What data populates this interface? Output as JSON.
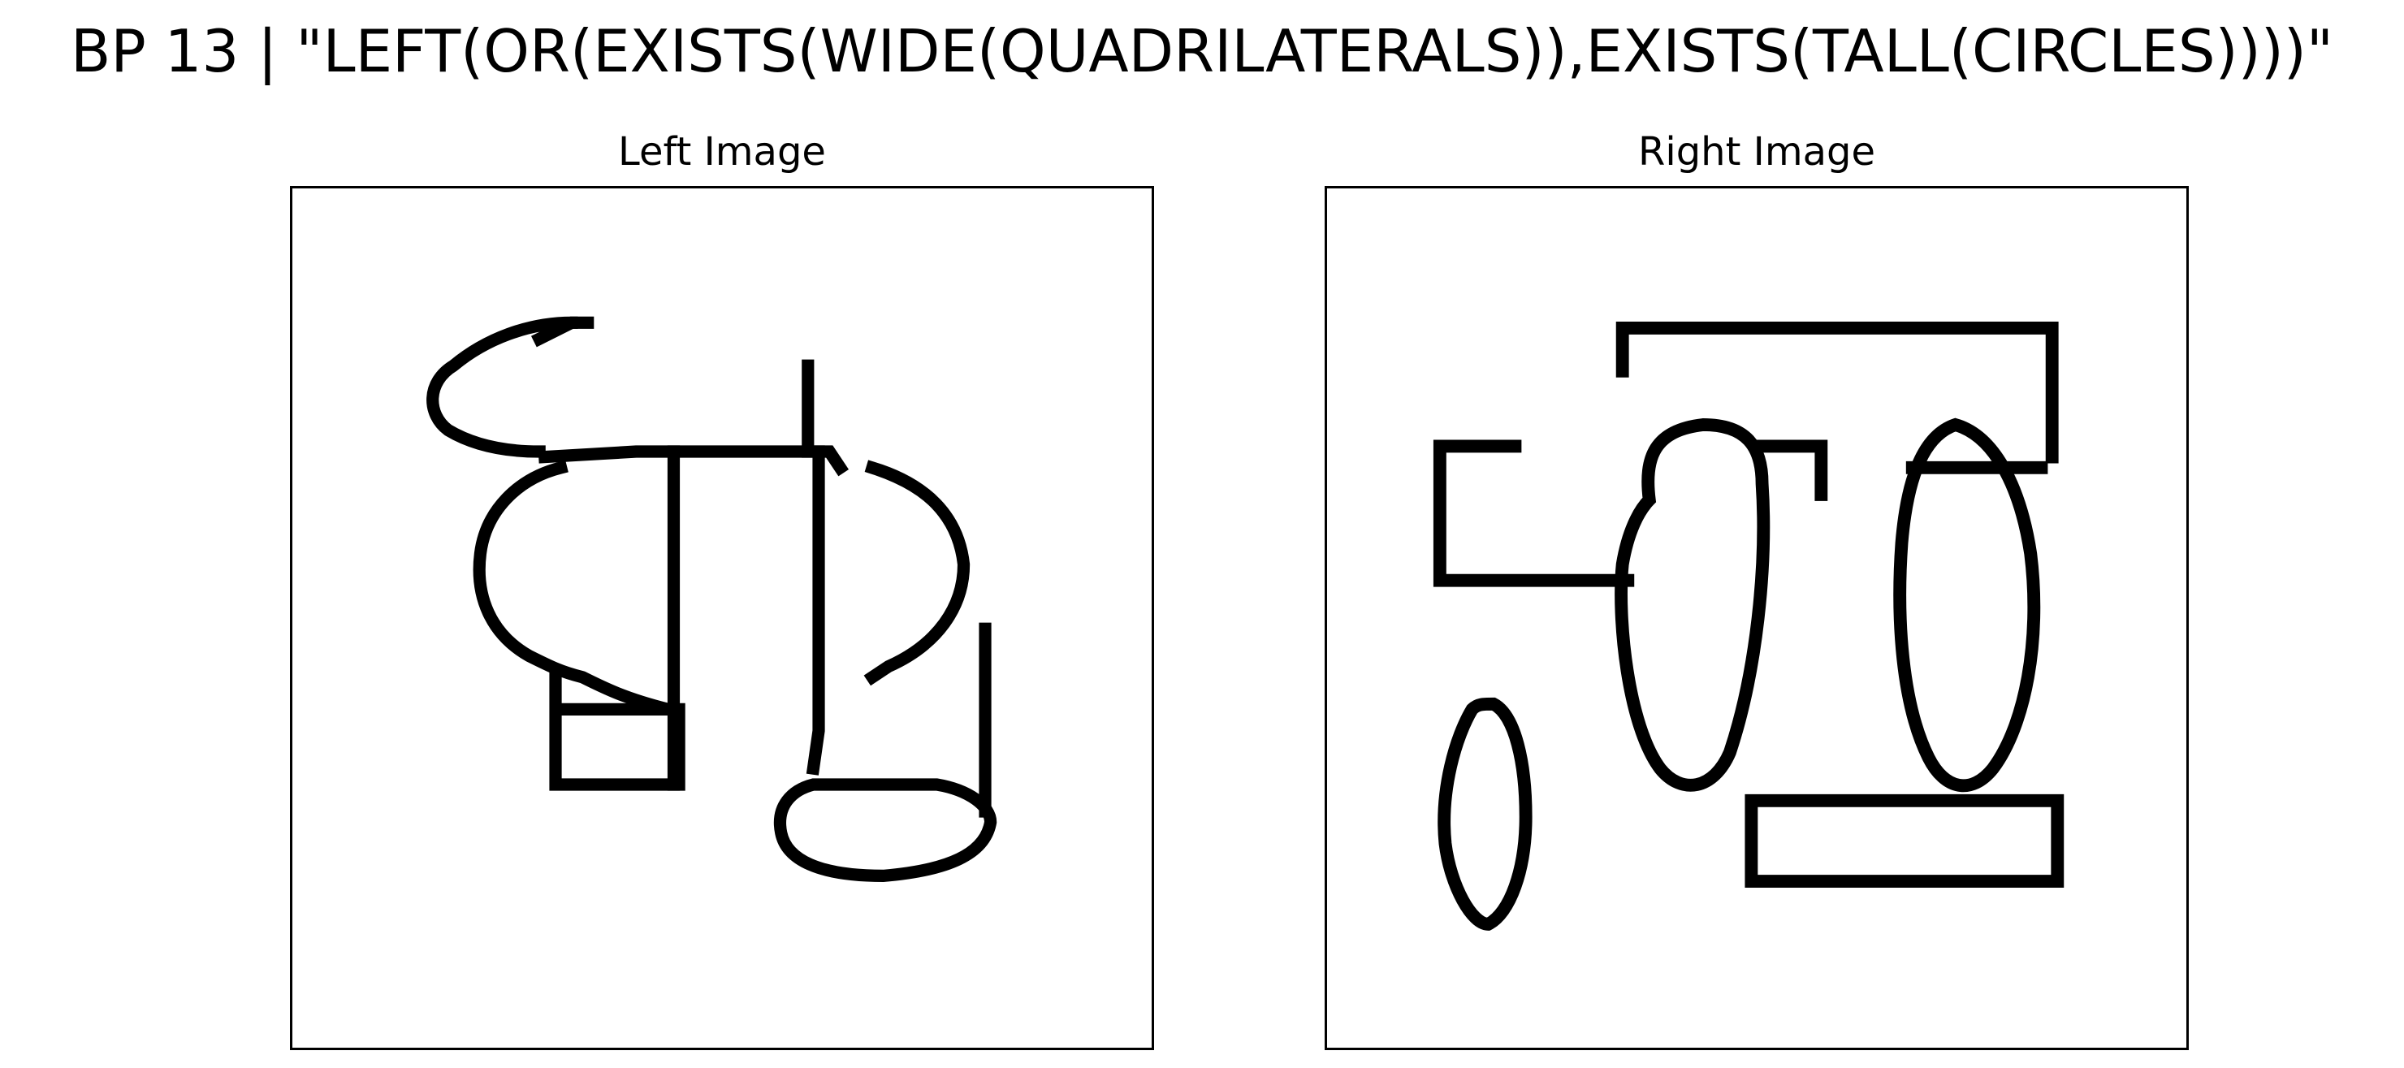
{
  "header": {
    "title": "BP 13 | \"LEFT(OR(EXISTS(WIDE(QUADRILATERALS)),EXISTS(TALL(CIRCLES))))\""
  },
  "panels": {
    "left": {
      "title": "Left Image"
    },
    "right": {
      "title": "Right Image"
    }
  }
}
